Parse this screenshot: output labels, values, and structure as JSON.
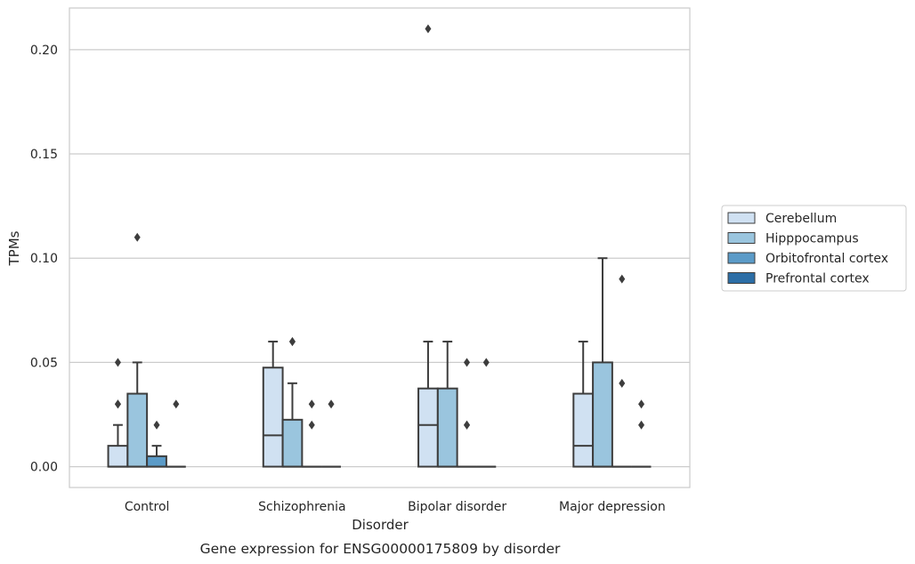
{
  "chart_data": {
    "type": "box",
    "caption": "Gene expression for ENSG00000175809 by disorder",
    "xlabel": "Disorder",
    "ylabel": "TPMs",
    "ylim": [
      -0.01,
      0.22
    ],
    "yticks": [
      0.0,
      0.05,
      0.1,
      0.15,
      0.2
    ],
    "ytick_labels": [
      "0.00",
      "0.05",
      "0.10",
      "0.15",
      "0.20"
    ],
    "grid": "horizontal",
    "legend_position": "right",
    "categories": [
      "Control",
      "Schizophrenia",
      "Bipolar disorder",
      "Major depression"
    ],
    "series": [
      {
        "name": "Cerebellum",
        "color": "#d0e1f2",
        "boxes": [
          {
            "whisker_low": 0.0,
            "q1": 0.0,
            "median": 0.0,
            "q3": 0.01,
            "whisker_high": 0.02,
            "outliers": [
              0.03,
              0.03,
              0.05
            ]
          },
          {
            "whisker_low": 0.0,
            "q1": 0.0,
            "median": 0.015,
            "q3": 0.0475,
            "whisker_high": 0.06,
            "outliers": []
          },
          {
            "whisker_low": 0.0,
            "q1": 0.0,
            "median": 0.02,
            "q3": 0.0375,
            "whisker_high": 0.06,
            "outliers": [
              0.21
            ]
          },
          {
            "whisker_low": 0.0,
            "q1": 0.0,
            "median": 0.01,
            "q3": 0.035,
            "whisker_high": 0.06,
            "outliers": []
          }
        ]
      },
      {
        "name": "Hipppocampus",
        "color": "#9ac5de",
        "boxes": [
          {
            "whisker_low": 0.0,
            "q1": 0.0,
            "median": 0.0,
            "q3": 0.035,
            "whisker_high": 0.05,
            "outliers": [
              0.11
            ]
          },
          {
            "whisker_low": 0.0,
            "q1": 0.0,
            "median": 0.0,
            "q3": 0.0225,
            "whisker_high": 0.04,
            "outliers": [
              0.06,
              0.06
            ]
          },
          {
            "whisker_low": 0.0,
            "q1": 0.0,
            "median": 0.0,
            "q3": 0.0375,
            "whisker_high": 0.06,
            "outliers": []
          },
          {
            "whisker_low": 0.0,
            "q1": 0.0,
            "median": 0.0,
            "q3": 0.05,
            "whisker_high": 0.1,
            "outliers": []
          }
        ]
      },
      {
        "name": "Orbitofrontal cortex",
        "color": "#5b9bc8",
        "boxes": [
          {
            "whisker_low": 0.0,
            "q1": 0.0,
            "median": 0.0,
            "q3": 0.005,
            "whisker_high": 0.01,
            "outliers": [
              0.02
            ]
          },
          {
            "whisker_low": 0.0,
            "q1": 0.0,
            "median": 0.0,
            "q3": 0.0,
            "whisker_high": 0.0,
            "outliers": [
              0.02,
              0.03
            ]
          },
          {
            "whisker_low": 0.0,
            "q1": 0.0,
            "median": 0.0,
            "q3": 0.0,
            "whisker_high": 0.0,
            "outliers": [
              0.02,
              0.02,
              0.05
            ]
          },
          {
            "whisker_low": 0.0,
            "q1": 0.0,
            "median": 0.0,
            "q3": 0.0,
            "whisker_high": 0.0,
            "outliers": [
              0.04,
              0.09
            ]
          }
        ]
      },
      {
        "name": "Prefrontal cortex",
        "color": "#2c6ea6",
        "boxes": [
          {
            "whisker_low": 0.0,
            "q1": 0.0,
            "median": 0.0,
            "q3": 0.0,
            "whisker_high": 0.0,
            "outliers": [
              0.03
            ]
          },
          {
            "whisker_low": 0.0,
            "q1": 0.0,
            "median": 0.0,
            "q3": 0.0,
            "whisker_high": 0.0,
            "outliers": [
              0.03
            ]
          },
          {
            "whisker_low": 0.0,
            "q1": 0.0,
            "median": 0.0,
            "q3": 0.0,
            "whisker_high": 0.0,
            "outliers": [
              0.05
            ]
          },
          {
            "whisker_low": 0.0,
            "q1": 0.0,
            "median": 0.0,
            "q3": 0.0,
            "whisker_high": 0.0,
            "outliers": [
              0.02,
              0.03
            ]
          }
        ]
      }
    ]
  }
}
